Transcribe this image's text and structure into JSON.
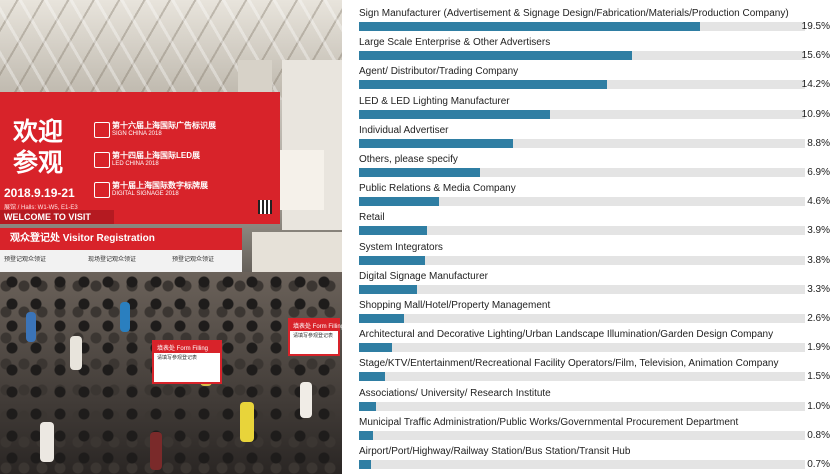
{
  "photo": {
    "banner": {
      "welcome_cn": "欢迎参观",
      "date": "2018.9.19-21",
      "halls": "展馆 / Halls: W1-W5, E1-E3",
      "welcome_en": "WELCOME TO VISIT",
      "shows": [
        {
          "cn": "第十六届上海国际广告标识展",
          "en": "SIGN CHINA 2018"
        },
        {
          "cn": "第十四届上海国际LED展",
          "en": "LED CHINA 2018"
        },
        {
          "cn": "第十届上海国际数字标牌展",
          "en": "DIGITAL SIGNAGE 2018"
        }
      ]
    },
    "registration": {
      "title": "观众登记处 Visitor Registration",
      "counters": [
        "预登记观众领证",
        "现场登记观众领证",
        "预登记观众领证"
      ]
    },
    "boards": [
      {
        "header": "填表处 Form Filling",
        "text": "请填写参观登记表"
      },
      {
        "header": "填表处 Form Filling",
        "text": "请填写参观登记表"
      }
    ]
  },
  "chart_data": {
    "type": "bar",
    "orientation": "horizontal",
    "title": "",
    "xlabel": "",
    "ylabel": "",
    "xlim": [
      0,
      25.5
    ],
    "bar_color": "#2f7ea3",
    "track_color": "#e4e4e4",
    "value_suffix": "%",
    "categories": [
      "Sign Manufacturer (Advertisement & Signage Design/Fabrication/Materials/Production Company)",
      "Large Scale Enterprise & Other Advertisers",
      "Agent/ Distributor/Trading Company",
      "LED & LED Lighting Manufacturer",
      "Individual Advertiser",
      "Others, please specify",
      "Public Relations & Media Company",
      "Retail",
      "System Integrators",
      "Digital Signage Manufacturer",
      "Shopping Mall/Hotel/Property Management",
      "Architectural and Decorative Lighting/Urban Landscape Illumination/Garden Design Company",
      "Stage/KTV/Entertainment/Recreational Facility Operators/Film, Television, Animation Company",
      "Associations/ University/ Research Institute",
      "Municipal Traffic Administration/Public Works/Governmental Procurement Department",
      "Airport/Port/Highway/Railway Station/Bus Station/Transit Hub"
    ],
    "values": [
      19.5,
      15.6,
      14.2,
      10.9,
      8.8,
      6.9,
      4.6,
      3.9,
      3.8,
      3.3,
      2.6,
      1.9,
      1.5,
      1.0,
      0.8,
      0.7
    ],
    "value_labels": [
      "19.5%",
      "15.6%",
      "14.2%",
      "10.9%",
      "8.8%",
      "6.9%",
      "4.6%",
      "3.9%",
      "3.8%",
      "3.3%",
      "2.6%",
      "1.9%",
      "1.5%",
      "1.0%",
      "0.8%",
      "0.7%"
    ]
  }
}
